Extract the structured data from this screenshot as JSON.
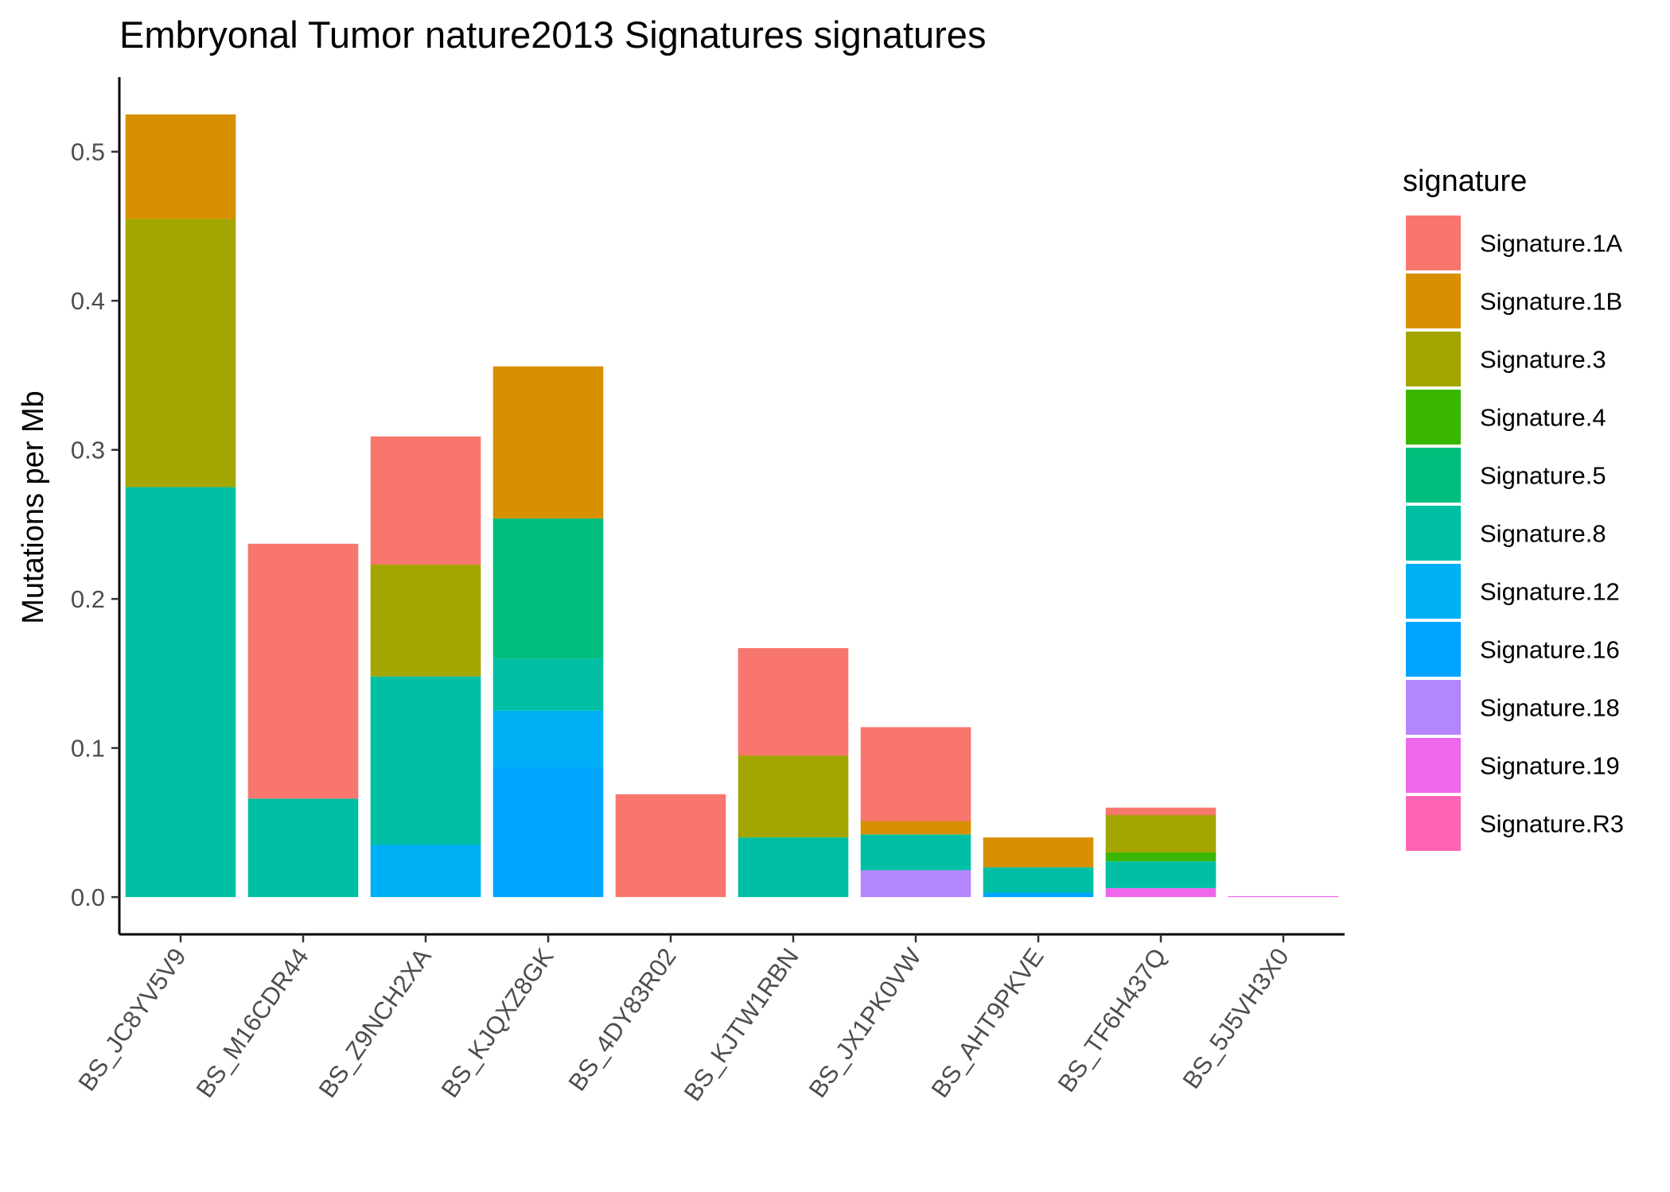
{
  "chart_data": {
    "type": "bar",
    "stacked": true,
    "title": "Embryonal Tumor nature2013 Signatures signatures",
    "xlabel": "",
    "ylabel": "Mutations per Mb",
    "ylim": [
      -0.025,
      0.55
    ],
    "yticks": [
      0.0,
      0.1,
      0.2,
      0.3,
      0.4,
      0.5
    ],
    "ytick_labels": [
      "0.0",
      "0.1",
      "0.2",
      "0.3",
      "0.4",
      "0.5"
    ],
    "grid": false,
    "legend": {
      "title": "signature",
      "position": "right"
    },
    "categories": [
      "BS_JC8YV5V9",
      "BS_M16CDR44",
      "BS_Z9NCH2XA",
      "BS_KJQXZ8GK",
      "BS_4DY83R02",
      "BS_KJTW1RBN",
      "BS_JX1PK0VW",
      "BS_AHT9PKVE",
      "BS_TF6H437Q",
      "BS_5J5VH3X0"
    ],
    "series": [
      {
        "name": "Signature.1A",
        "color": "#F8766D",
        "values": [
          0,
          0.171,
          0.086,
          0,
          0.069,
          0.072,
          0.063,
          0,
          0.005,
          0
        ]
      },
      {
        "name": "Signature.1B",
        "color": "#D89000",
        "values": [
          0.07,
          0,
          0,
          0.102,
          0,
          0,
          0.009,
          0.02,
          0,
          0
        ]
      },
      {
        "name": "Signature.3",
        "color": "#A3A500",
        "values": [
          0.18,
          0,
          0.075,
          0,
          0,
          0.055,
          0,
          0,
          0.025,
          0
        ]
      },
      {
        "name": "Signature.4",
        "color": "#39B600",
        "values": [
          0,
          0,
          0,
          0,
          0,
          0,
          0,
          0,
          0.006,
          0
        ]
      },
      {
        "name": "Signature.5",
        "color": "#00BF7D",
        "values": [
          0,
          0,
          0,
          0.094,
          0,
          0,
          0,
          0,
          0,
          0
        ]
      },
      {
        "name": "Signature.8",
        "color": "#00BFA4",
        "values": [
          0.275,
          0.066,
          0.113,
          0.035,
          0,
          0.04,
          0.024,
          0.017,
          0.018,
          0
        ]
      },
      {
        "name": "Signature.12",
        "color": "#00B0F6",
        "values": [
          0,
          0,
          0.035,
          0.038,
          0,
          0,
          0,
          0,
          0,
          0
        ]
      },
      {
        "name": "Signature.16",
        "color": "#00A5FF",
        "values": [
          0,
          0,
          0,
          0.087,
          0,
          0,
          0,
          0.003,
          0,
          0
        ]
      },
      {
        "name": "Signature.18",
        "color": "#B385FF",
        "values": [
          0,
          0,
          0,
          0,
          0,
          0,
          0.018,
          0,
          0,
          0
        ]
      },
      {
        "name": "Signature.19",
        "color": "#EF67EB",
        "values": [
          0,
          0,
          0,
          0,
          0,
          0,
          0,
          0,
          0.006,
          0.0005
        ]
      },
      {
        "name": "Signature.R3",
        "color": "#FF63B6",
        "values": [
          0,
          0,
          0,
          0,
          0,
          0,
          0,
          0,
          0,
          0
        ]
      }
    ]
  }
}
